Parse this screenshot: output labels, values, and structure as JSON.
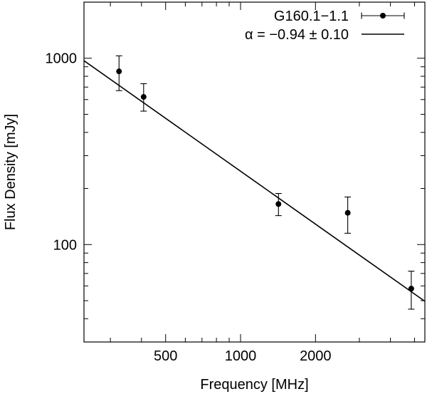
{
  "chart_data": {
    "type": "scatter",
    "xscale": "log",
    "yscale": "log",
    "xlim": [
      235,
      5500
    ],
    "ylim": [
      30,
      2000
    ],
    "xlabel": "Frequency [MHz]",
    "ylabel": "Flux Density [mJy]",
    "xticks": [
      {
        "value": 500,
        "label": "500"
      },
      {
        "value": 1000,
        "label": "1000"
      },
      {
        "value": 2000,
        "label": "2000"
      }
    ],
    "yticks": [
      {
        "value": 100,
        "label": "100"
      },
      {
        "value": 1000,
        "label": "1000"
      }
    ],
    "grid": false,
    "legend_position": "top-right",
    "series": [
      {
        "name": "G160.1−1.1",
        "kind": "points-with-errorbars",
        "color": "#000000",
        "points": [
          {
            "x": 325,
            "y": 850,
            "yerr_low": 670,
            "yerr_high": 1030
          },
          {
            "x": 408,
            "y": 620,
            "yerr_low": 520,
            "yerr_high": 730
          },
          {
            "x": 1420,
            "y": 165,
            "yerr_low": 143,
            "yerr_high": 188
          },
          {
            "x": 2695,
            "y": 148,
            "yerr_low": 115,
            "yerr_high": 180
          },
          {
            "x": 4850,
            "y": 58,
            "yerr_low": 45,
            "yerr_high": 72
          }
        ]
      },
      {
        "name": "α = −0.94 ± 0.10",
        "kind": "fit-line",
        "color": "#000000",
        "x": [
          235,
          5500
        ],
        "y": [
          970,
          49.6
        ]
      }
    ]
  }
}
